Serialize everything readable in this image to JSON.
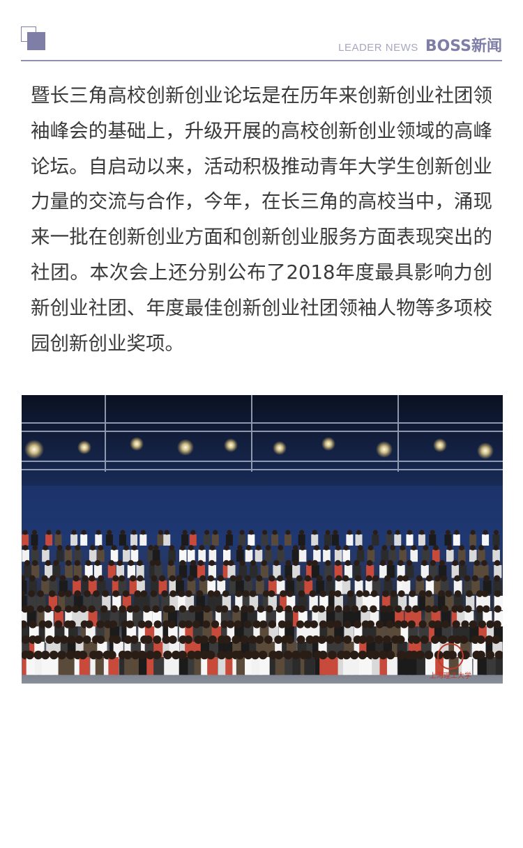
{
  "header": {
    "en_label": "LEADER NEWS",
    "cn_label": "BOSS新闻",
    "accent_color": "#7e7ea6",
    "icon": "square-logo-icon"
  },
  "article": {
    "paragraph": "暨长三角高校创新创业论坛是在历年来创新创业社团领袖峰会的基础上，升级开展的高校创新创业领域的高峰论坛。自启动以来，活动积极推动青年大学生创新创业力量的交流与合作，今年，在长三角的高校当中，涌现来一批在创新创业方面和创新创业服务方面表现突出的社团。本次会上还分别公布了2018年度最具影响力创新创业社团、年度最佳创新创业社团领袖人物等多项校园创新创业奖项。"
  },
  "photo": {
    "watermark": "上海理工大学"
  }
}
